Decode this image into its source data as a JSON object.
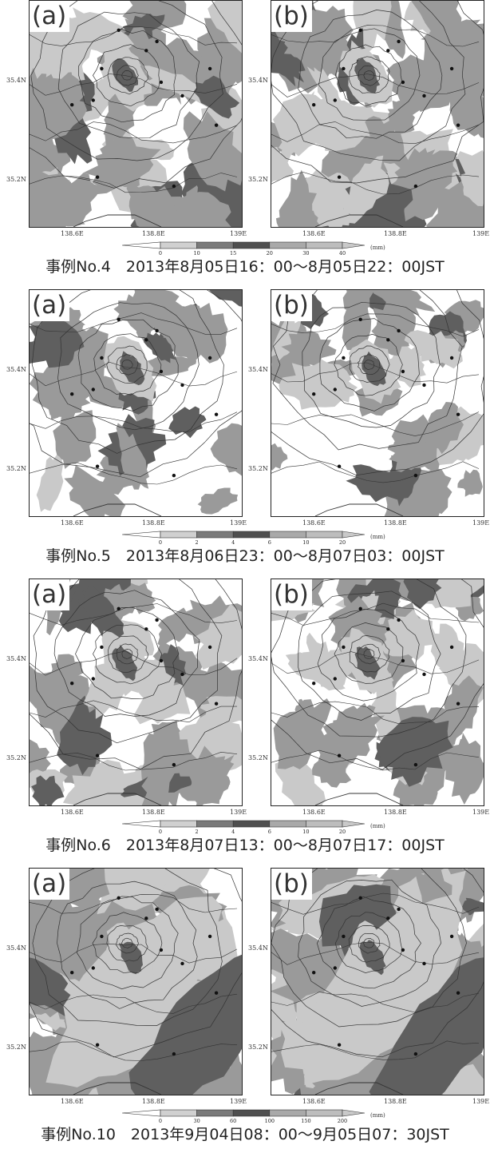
{
  "figure": {
    "panel_labels": [
      "(a)",
      "(b)"
    ],
    "lat_ticks": [
      "35.4N",
      "35.2N"
    ],
    "lon_ticks": [
      "138.6E",
      "138.8E",
      "139E"
    ],
    "colors": {
      "white": "#ffffff",
      "light": "#c9c9c9",
      "mid": "#9a9a9a",
      "dark": "#5f5f5f",
      "contour": "#333333"
    }
  },
  "cases": [
    {
      "caption": "事例No.4　2013年8月05日16：00〜8月05日22：00JST",
      "colorbar": {
        "ticks": [
          "0",
          "10",
          "15",
          "20",
          "30",
          "40"
        ],
        "unit": "(mm)"
      },
      "fill_coverage_fraction": 0.7
    },
    {
      "caption": "事例No.5　2013年8月06日23：00〜8月07日03：00JST",
      "colorbar": {
        "ticks": [
          "0",
          "2",
          "4",
          "6",
          "10",
          "20"
        ],
        "unit": "(mm)"
      },
      "fill_coverage_fraction": 0.35
    },
    {
      "caption": "事例No.6　2013年8月07日13：00〜8月07日17：00JST",
      "colorbar": {
        "ticks": [
          "0",
          "2",
          "4",
          "6",
          "10",
          "20"
        ],
        "unit": "(mm)"
      },
      "fill_coverage_fraction": 0.5
    },
    {
      "caption": "事例No.10　2013年9月04日08：00〜9月05日07：30JST",
      "colorbar": {
        "ticks": [
          "0",
          "30",
          "60",
          "100",
          "150",
          "200"
        ],
        "unit": "(mm)"
      },
      "fill_coverage_fraction": 0.98
    }
  ]
}
